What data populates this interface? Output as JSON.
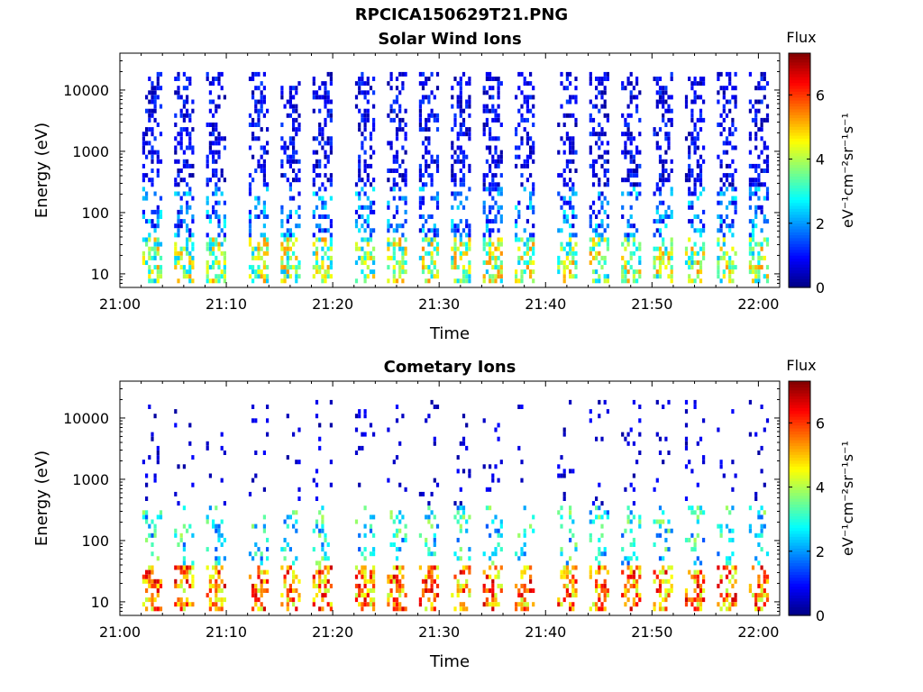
{
  "figure": {
    "filename_title": "RPCICA150629T21.PNG"
  },
  "chart_data": [
    {
      "type": "heatmap",
      "title": "Solar Wind Ions",
      "xlabel": "Time",
      "ylabel": "Energy (eV)",
      "x_ticks": [
        "21:00",
        "21:10",
        "21:20",
        "21:30",
        "21:40",
        "21:50",
        "22:00"
      ],
      "xlim": [
        "21:00",
        "22:02"
      ],
      "y_scale": "log",
      "y_ticks": [
        10,
        100,
        1000,
        10000
      ],
      "ylim": [
        6,
        40000
      ],
      "colorbar": {
        "title": "Flux",
        "label": "eV⁻¹cm⁻²sr⁻¹s⁻¹",
        "ticks": [
          0,
          2,
          4,
          6
        ],
        "range": [
          0,
          7.3
        ],
        "colormap": "jet"
      },
      "burst_times": [
        "21:03",
        "21:06",
        "21:09",
        "21:13",
        "21:16",
        "21:19",
        "21:23",
        "21:26",
        "21:29",
        "21:32",
        "21:35",
        "21:38",
        "21:42",
        "21:45",
        "21:48",
        "21:51",
        "21:54",
        "21:57",
        "22:00"
      ],
      "dominant_low_energy_flux": 3.5,
      "dominant_high_energy_flux": 0.6
    },
    {
      "type": "heatmap",
      "title": "Cometary Ions",
      "xlabel": "Time",
      "ylabel": "Energy (eV)",
      "x_ticks": [
        "21:00",
        "21:10",
        "21:20",
        "21:30",
        "21:40",
        "21:50",
        "22:00"
      ],
      "xlim": [
        "21:00",
        "22:02"
      ],
      "y_scale": "log",
      "y_ticks": [
        10,
        100,
        1000,
        10000
      ],
      "ylim": [
        6,
        40000
      ],
      "colorbar": {
        "title": "Flux",
        "label": "eV⁻¹cm⁻²sr⁻¹s⁻¹",
        "ticks": [
          0,
          2,
          4,
          6
        ],
        "range": [
          0,
          7.3
        ],
        "colormap": "jet"
      },
      "burst_times": [
        "21:03",
        "21:06",
        "21:09",
        "21:13",
        "21:16",
        "21:19",
        "21:23",
        "21:26",
        "21:29",
        "21:32",
        "21:35",
        "21:38",
        "21:42",
        "21:45",
        "21:48",
        "21:51",
        "21:54",
        "21:57",
        "22:00"
      ],
      "dominant_low_energy_flux": 6.0,
      "dominant_high_energy_flux": 0.6
    }
  ]
}
